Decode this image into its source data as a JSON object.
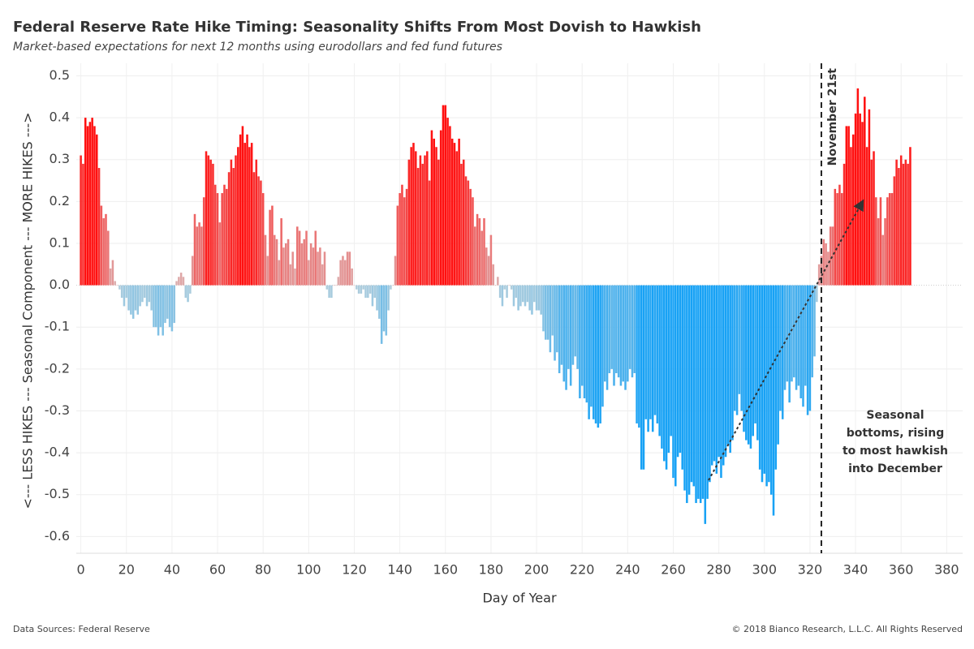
{
  "chart_data": {
    "type": "bar",
    "title": "Federal Reserve Rate Hike Timing: Seasonality Shifts From Most Dovish to Hawkish",
    "subtitle": "Market-based expectations for next 12 months using eurodollars and fed fund futures",
    "x_label": "Day of Year",
    "y_label": "<--- LESS HIKES --- Seasonal Component --- MORE HIKES --->",
    "source": "Data Sources: Federal Reserve",
    "copyright": "© 2018 Bianco Research, L.L.C. All Rights Reserved",
    "colors": {
      "positive": "#ff1010",
      "positive_light": "#dcb4b4",
      "negative": "#18a2f5",
      "negative_light": "#b4cfdc"
    },
    "grid": true,
    "xlim": [
      -2,
      387
    ],
    "ylim": [
      -0.64,
      0.53
    ],
    "xticks": [
      0,
      20,
      40,
      60,
      80,
      100,
      120,
      140,
      160,
      180,
      200,
      220,
      240,
      260,
      280,
      300,
      320,
      340,
      360,
      380
    ],
    "yticks": [
      -0.6,
      -0.5,
      -0.4,
      -0.3,
      -0.2,
      -0.1,
      {
        "value": 0,
        "label": "0.0"
      },
      0.1,
      0.2,
      0.3,
      0.4,
      0.5
    ],
    "vline": {
      "x": 325,
      "label": "November 21st"
    },
    "annotation": [
      "Seasonal",
      "bottoms, rising",
      "to most hawkish",
      "into December"
    ],
    "x": [
      0,
      1,
      2,
      3,
      4,
      5,
      6,
      7,
      8,
      9,
      10,
      11,
      12,
      13,
      14,
      15,
      16,
      17,
      18,
      19,
      20,
      21,
      22,
      23,
      24,
      25,
      26,
      27,
      28,
      29,
      30,
      31,
      32,
      33,
      34,
      35,
      36,
      37,
      38,
      39,
      40,
      41,
      42,
      43,
      44,
      45,
      46,
      47,
      48,
      49,
      50,
      51,
      52,
      53,
      54,
      55,
      56,
      57,
      58,
      59,
      60,
      61,
      62,
      63,
      64,
      65,
      66,
      67,
      68,
      69,
      70,
      71,
      72,
      73,
      74,
      75,
      76,
      77,
      78,
      79,
      80,
      81,
      82,
      83,
      84,
      85,
      86,
      87,
      88,
      89,
      90,
      91,
      92,
      93,
      94,
      95,
      96,
      97,
      98,
      99,
      100,
      101,
      102,
      103,
      104,
      105,
      106,
      107,
      108,
      109,
      110,
      111,
      112,
      113,
      114,
      115,
      116,
      117,
      118,
      119,
      120,
      121,
      122,
      123,
      124,
      125,
      126,
      127,
      128,
      129,
      130,
      131,
      132,
      133,
      134,
      135,
      136,
      137,
      138,
      139,
      140,
      141,
      142,
      143,
      144,
      145,
      146,
      147,
      148,
      149,
      150,
      151,
      152,
      153,
      154,
      155,
      156,
      157,
      158,
      159,
      160,
      161,
      162,
      163,
      164,
      165,
      166,
      167,
      168,
      169,
      170,
      171,
      172,
      173,
      174,
      175,
      176,
      177,
      178,
      179,
      180,
      181,
      182,
      183,
      184,
      185,
      186,
      187,
      188,
      189,
      190,
      191,
      192,
      193,
      194,
      195,
      196,
      197,
      198,
      199,
      200,
      201,
      202,
      203,
      204,
      205,
      206,
      207,
      208,
      209,
      210,
      211,
      212,
      213,
      214,
      215,
      216,
      217,
      218,
      219,
      220,
      221,
      222,
      223,
      224,
      225,
      226,
      227,
      228,
      229,
      230,
      231,
      232,
      233,
      234,
      235,
      236,
      237,
      238,
      239,
      240,
      241,
      242,
      243,
      244,
      245,
      246,
      247,
      248,
      249,
      250,
      251,
      252,
      253,
      254,
      255,
      256,
      257,
      258,
      259,
      260,
      261,
      262,
      263,
      264,
      265,
      266,
      267,
      268,
      269,
      270,
      271,
      272,
      273,
      274,
      275,
      276,
      277,
      278,
      279,
      280,
      281,
      282,
      283,
      284,
      285,
      286,
      287,
      288,
      289,
      290,
      291,
      292,
      293,
      294,
      295,
      296,
      297,
      298,
      299,
      300,
      301,
      302,
      303,
      304,
      305,
      306,
      307,
      308,
      309,
      310,
      311,
      312,
      313,
      314,
      315,
      316,
      317,
      318,
      319,
      320,
      321,
      322,
      323,
      324,
      325,
      326,
      327,
      328,
      329,
      330,
      331,
      332,
      333,
      334,
      335,
      336,
      337,
      338,
      339,
      340,
      341,
      342,
      343,
      344,
      345,
      346,
      347,
      348,
      349,
      350,
      351,
      352,
      353,
      354,
      355,
      356,
      357,
      358,
      359,
      360,
      361,
      362,
      363,
      364
    ],
    "values": [
      0.31,
      0.29,
      0.4,
      0.38,
      0.39,
      0.4,
      0.38,
      0.36,
      0.28,
      0.19,
      0.16,
      0.17,
      0.13,
      0.04,
      0.06,
      0.01,
      0.0,
      -0.01,
      -0.03,
      -0.05,
      -0.03,
      -0.06,
      -0.07,
      -0.08,
      -0.06,
      -0.07,
      -0.05,
      -0.04,
      -0.03,
      -0.05,
      -0.04,
      -0.06,
      -0.1,
      -0.1,
      -0.12,
      -0.1,
      -0.12,
      -0.09,
      -0.08,
      -0.1,
      -0.11,
      -0.09,
      0.01,
      0.02,
      0.03,
      0.02,
      -0.03,
      -0.04,
      -0.02,
      0.07,
      0.17,
      0.14,
      0.15,
      0.14,
      0.21,
      0.32,
      0.31,
      0.3,
      0.29,
      0.24,
      0.22,
      0.15,
      0.22,
      0.24,
      0.23,
      0.27,
      0.3,
      0.28,
      0.31,
      0.33,
      0.36,
      0.38,
      0.34,
      0.36,
      0.33,
      0.34,
      0.27,
      0.3,
      0.26,
      0.25,
      0.22,
      0.12,
      0.07,
      0.18,
      0.19,
      0.12,
      0.11,
      0.06,
      0.16,
      0.09,
      0.1,
      0.11,
      0.05,
      0.08,
      0.04,
      0.14,
      0.13,
      0.1,
      0.11,
      0.13,
      0.06,
      0.1,
      0.09,
      0.13,
      0.08,
      0.09,
      0.05,
      0.08,
      -0.01,
      -0.03,
      -0.03,
      0.0,
      0.0,
      0.02,
      0.06,
      0.07,
      0.06,
      0.08,
      0.08,
      0.04,
      0.0,
      -0.01,
      -0.02,
      -0.02,
      -0.01,
      -0.03,
      -0.03,
      -0.02,
      -0.05,
      -0.03,
      -0.06,
      -0.08,
      -0.14,
      -0.11,
      -0.12,
      -0.06,
      -0.01,
      0.0,
      0.07,
      0.19,
      0.22,
      0.24,
      0.21,
      0.23,
      0.3,
      0.33,
      0.34,
      0.32,
      0.28,
      0.31,
      0.29,
      0.31,
      0.32,
      0.25,
      0.37,
      0.35,
      0.33,
      0.3,
      0.37,
      0.43,
      0.43,
      0.4,
      0.38,
      0.35,
      0.34,
      0.32,
      0.35,
      0.29,
      0.3,
      0.26,
      0.25,
      0.23,
      0.21,
      0.14,
      0.17,
      0.16,
      0.13,
      0.16,
      0.09,
      0.07,
      0.12,
      0.05,
      0.0,
      0.02,
      -0.03,
      -0.05,
      -0.01,
      -0.03,
      0.0,
      -0.01,
      -0.05,
      -0.03,
      -0.06,
      -0.05,
      -0.04,
      -0.05,
      -0.04,
      -0.06,
      -0.07,
      -0.04,
      -0.06,
      -0.06,
      -0.07,
      -0.11,
      -0.13,
      -0.13,
      -0.16,
      -0.12,
      -0.18,
      -0.16,
      -0.21,
      -0.19,
      -0.23,
      -0.25,
      -0.2,
      -0.24,
      -0.19,
      -0.17,
      -0.2,
      -0.27,
      -0.24,
      -0.27,
      -0.28,
      -0.32,
      -0.29,
      -0.32,
      -0.33,
      -0.34,
      -0.33,
      -0.29,
      -0.23,
      -0.25,
      -0.21,
      -0.2,
      -0.24,
      -0.21,
      -0.22,
      -0.24,
      -0.23,
      -0.25,
      -0.23,
      -0.2,
      -0.22,
      -0.21,
      -0.33,
      -0.34,
      -0.44,
      -0.44,
      -0.32,
      -0.35,
      -0.32,
      -0.35,
      -0.31,
      -0.33,
      -0.36,
      -0.39,
      -0.42,
      -0.44,
      -0.4,
      -0.36,
      -0.46,
      -0.48,
      -0.41,
      -0.4,
      -0.44,
      -0.49,
      -0.52,
      -0.5,
      -0.47,
      -0.48,
      -0.52,
      -0.51,
      -0.52,
      -0.51,
      -0.57,
      -0.51,
      -0.47,
      -0.43,
      -0.42,
      -0.45,
      -0.41,
      -0.46,
      -0.43,
      -0.41,
      -0.38,
      -0.4,
      -0.37,
      -0.3,
      -0.31,
      -0.26,
      -0.3,
      -0.35,
      -0.37,
      -0.38,
      -0.39,
      -0.36,
      -0.33,
      -0.37,
      -0.44,
      -0.47,
      -0.45,
      -0.48,
      -0.47,
      -0.5,
      -0.55,
      -0.44,
      -0.38,
      -0.3,
      -0.32,
      -0.25,
      -0.23,
      -0.28,
      -0.23,
      -0.22,
      -0.25,
      -0.24,
      -0.27,
      -0.29,
      -0.24,
      -0.31,
      -0.3,
      -0.22,
      -0.17,
      -0.04,
      0.05,
      0.07,
      0.11,
      0.1,
      0.08,
      0.14,
      0.14,
      0.23,
      0.22,
      0.24,
      0.22,
      0.29,
      0.38,
      0.38,
      0.33,
      0.36,
      0.41,
      0.47,
      0.41,
      0.39,
      0.45,
      0.33,
      0.42,
      0.3,
      0.32,
      0.21,
      0.16,
      0.21,
      0.12,
      0.16,
      0.21,
      0.22,
      0.22,
      0.26,
      0.3,
      0.28,
      0.31,
      0.29,
      0.3,
      0.29,
      0.33
    ]
  }
}
